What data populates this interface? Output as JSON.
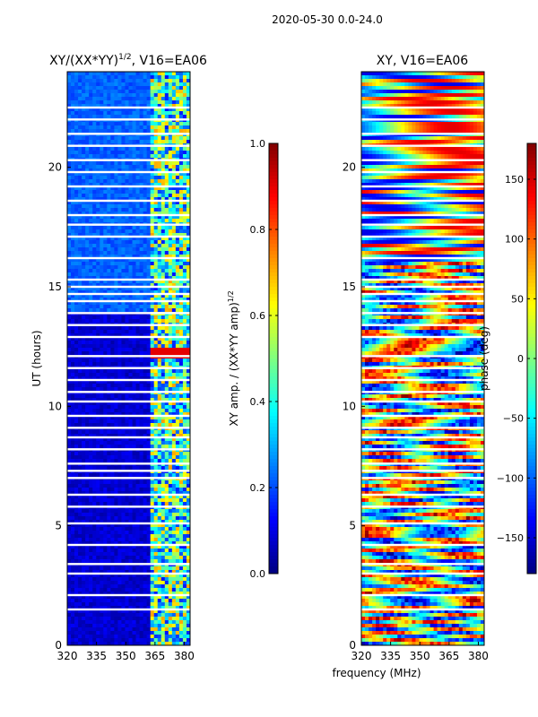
{
  "figure_title": "2020-05-30 0.0-24.0",
  "shared_xlabel": "frequency (MHz)",
  "chart_data": [
    {
      "type": "heatmap",
      "title": "XY/(XX*YY)",
      "title_sup": "1/2",
      "title_suffix": ", V16=EA06",
      "xlabel": "",
      "ylabel": "UT (hours)",
      "xlim": [
        320,
        383
      ],
      "ylim": [
        0,
        24
      ],
      "xticks": [
        320,
        335,
        350,
        365,
        380
      ],
      "yticks": [
        0,
        5,
        10,
        15,
        20
      ],
      "colorbar": {
        "label": "XY amp. / (XX*YY amp)",
        "label_sup": "1/2",
        "range": [
          0.0,
          1.0
        ],
        "ticks": [
          "0.0",
          "0.2",
          "0.4",
          "0.6",
          "0.8",
          "1.0"
        ],
        "tick_values": [
          0.0,
          0.2,
          0.4,
          0.6,
          0.8,
          1.0
        ]
      },
      "colormap": "jet",
      "description_values": {
        "low_band_mhz": [
          320,
          362
        ],
        "low_band_level": 0.05,
        "high_band_mhz": [
          362,
          383
        ],
        "high_band_level": 0.45,
        "flag_gaps_ut_hours": [
          1.5,
          2.1,
          3.0,
          3.4,
          4.2,
          5.1,
          5.8,
          6.3,
          7.0,
          7.3,
          7.6,
          8.2,
          8.7,
          9.1,
          9.6,
          10.2,
          10.6,
          11.1,
          11.6,
          12.1,
          12.9,
          13.4,
          13.9,
          14.4,
          14.7,
          15.0,
          15.3,
          16.2,
          17.1,
          17.6,
          18.0,
          18.6,
          19.2,
          19.8,
          20.3,
          20.9,
          21.4,
          22.0,
          22.5
        ]
      }
    },
    {
      "type": "heatmap",
      "title": "XY, V16=EA06",
      "xlabel": "frequency (MHz)",
      "ylabel": "",
      "xlim": [
        320,
        383
      ],
      "ylim": [
        0,
        24
      ],
      "xticks": [
        320,
        335,
        350,
        365,
        380
      ],
      "yticks": [
        0,
        5,
        10,
        15,
        20
      ],
      "colorbar": {
        "label": "phase (deg)",
        "range": [
          -180,
          180
        ],
        "ticks": [
          "−150",
          "−100",
          "−50",
          "0",
          "50",
          "100",
          "150"
        ],
        "tick_values": [
          -150,
          -100,
          -50,
          0,
          50,
          100,
          150
        ]
      },
      "colormap": "jet",
      "description_values": {
        "phase_range_deg": [
          -180,
          180
        ],
        "flag_gaps_ut_hours": [
          1.5,
          2.1,
          3.0,
          3.4,
          4.2,
          5.1,
          5.8,
          6.3,
          7.0,
          7.3,
          7.6,
          8.2,
          8.7,
          9.1,
          9.6,
          10.2,
          10.6,
          11.1,
          11.6,
          12.1,
          12.9,
          13.4,
          13.9,
          14.4,
          14.7,
          15.0,
          15.3,
          16.2,
          17.1,
          17.6,
          18.0,
          18.6,
          19.2,
          19.8,
          20.3,
          20.9,
          21.4,
          22.0,
          22.5
        ]
      }
    }
  ]
}
